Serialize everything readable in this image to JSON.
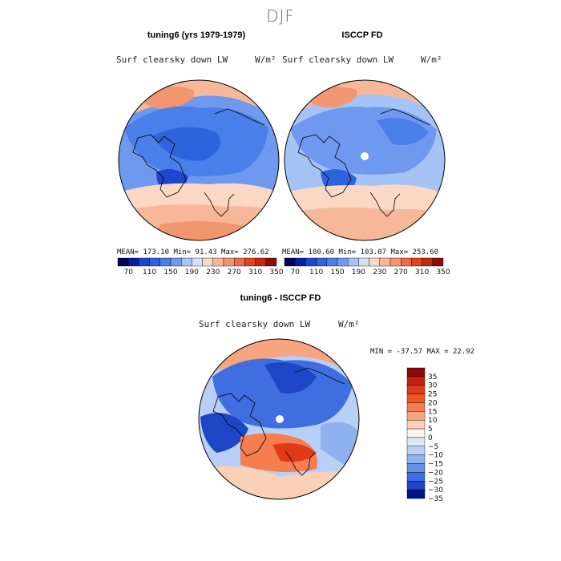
{
  "figure": {
    "season": "DJF",
    "panel_left_title": "tuning6 (yrs 1979-1979)",
    "panel_right_title": "ISCCP FD",
    "panel_diff_title": "tuning6 - ISCCP FD",
    "variable_label": "Surf clearsky down LW",
    "units_label": "W/m²"
  },
  "chart_data": [
    {
      "type": "heatmap",
      "title": "tuning6 (yrs 1979-1979)",
      "variable": "Surf clearsky down LW",
      "units": "W/m²",
      "projection": "north polar stereographic",
      "stats": {
        "mean": "173.10",
        "min": "91.43",
        "max": "276.62"
      },
      "stats_text": "MEAN= 173.10  Min=  91.43  Max= 276.62",
      "colorbar_levels": [
        70,
        90,
        110,
        130,
        150,
        170,
        190,
        210,
        230,
        250,
        270,
        290,
        310,
        330,
        350
      ],
      "colorbar_tick_labels": [
        "70",
        "110",
        "150",
        "190",
        "230",
        "270",
        "310",
        "350"
      ]
    },
    {
      "type": "heatmap",
      "title": "ISCCP FD",
      "variable": "Surf clearsky down LW",
      "units": "W/m²",
      "projection": "north polar stereographic",
      "stats": {
        "mean": "180.60",
        "min": "103.07",
        "max": "253.60"
      },
      "stats_text": "MEAN= 180.60  Min= 103.07  Max= 253.60",
      "colorbar_levels": [
        70,
        90,
        110,
        130,
        150,
        170,
        190,
        210,
        230,
        250,
        270,
        290,
        310,
        330,
        350
      ],
      "colorbar_tick_labels": [
        "70",
        "110",
        "150",
        "190",
        "230",
        "270",
        "310",
        "350"
      ]
    },
    {
      "type": "heatmap",
      "title": "tuning6 - ISCCP FD",
      "variable": "Surf clearsky down LW",
      "units": "W/m²",
      "projection": "north polar stereographic",
      "stats": {
        "min": "-37.57",
        "max": "22.92"
      },
      "stats_text": "MIN = -37.57 MAX =  22.92",
      "colorbar_levels": [
        35,
        30,
        25,
        20,
        15,
        10,
        5,
        0,
        -5,
        -10,
        -15,
        -20,
        -25,
        -30,
        -35
      ],
      "colorbar_tick_labels": [
        "35",
        "30",
        "25",
        "20",
        "15",
        "10",
        "5",
        "0",
        "−5",
        "−10",
        "−15",
        "−20",
        "−25",
        "−30",
        "−35"
      ]
    }
  ],
  "colors": {
    "abs_scale": [
      "#00005a",
      "#0a1fa0",
      "#1c46cc",
      "#2f62dd",
      "#4a7ee8",
      "#6f99ef",
      "#a6c3f6",
      "#d2e1fb",
      "#fbd8c6",
      "#f7b899",
      "#f29670",
      "#ec6c46",
      "#e0451f",
      "#c22a10",
      "#8c0f05"
    ],
    "diff_scale": [
      "#8c0a05",
      "#c22010",
      "#e03a16",
      "#f05524",
      "#f47e4e",
      "#f6a57e",
      "#fad0b7",
      "#fdf2ec",
      "#dde8fb",
      "#b8cff6",
      "#8fb1f0",
      "#6590e8",
      "#3f6ee0",
      "#1d45c6",
      "#00138a"
    ],
    "ocean_blue": "#3f6ee0",
    "land_orange": "#f7b899"
  }
}
